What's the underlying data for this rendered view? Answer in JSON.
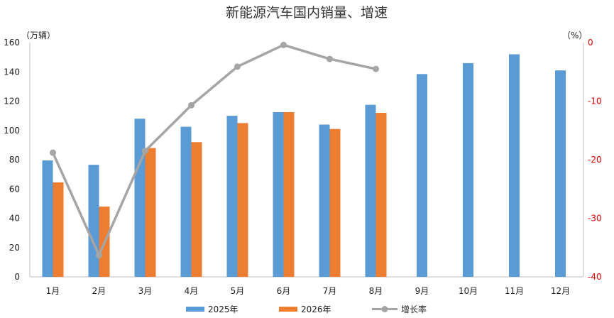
{
  "chart_data": {
    "type": "bar",
    "title": "新能源汽车国内销量、增速",
    "categories": [
      "1月",
      "2月",
      "3月",
      "4月",
      "5月",
      "6月",
      "7月",
      "8月",
      "9月",
      "10月",
      "11月",
      "12月"
    ],
    "series": [
      {
        "name": "2025年",
        "type": "bar",
        "axis": "left",
        "color": "#5b9bd5",
        "values": [
          79.5,
          76.5,
          108.0,
          102.5,
          110.0,
          112.5,
          104.0,
          117.5,
          138.5,
          146.0,
          152.0,
          141.0
        ]
      },
      {
        "name": "2026年",
        "type": "bar",
        "axis": "left",
        "color": "#ed7d31",
        "values": [
          64.5,
          48.0,
          88.0,
          92.0,
          105.0,
          112.5,
          101.0,
          112.0,
          null,
          null,
          null,
          null
        ]
      },
      {
        "name": "增长率",
        "type": "line",
        "axis": "right",
        "color": "#a5a5a5",
        "values": [
          -18.8,
          -36.3,
          -18.5,
          -10.7,
          -4.1,
          -0.4,
          -2.8,
          -4.5,
          null,
          null,
          null,
          null
        ]
      }
    ],
    "y_left": {
      "unit_label": "（万辆）",
      "min": 0,
      "max": 160,
      "ticks": [
        0,
        20,
        40,
        60,
        80,
        100,
        120,
        140,
        160
      ]
    },
    "y_right": {
      "unit_label": "（%）",
      "min": -40,
      "max": 0,
      "ticks": [
        0,
        -10,
        -20,
        -30,
        -40
      ],
      "color": "#e00000"
    },
    "grid": false,
    "legend_position": "bottom"
  }
}
